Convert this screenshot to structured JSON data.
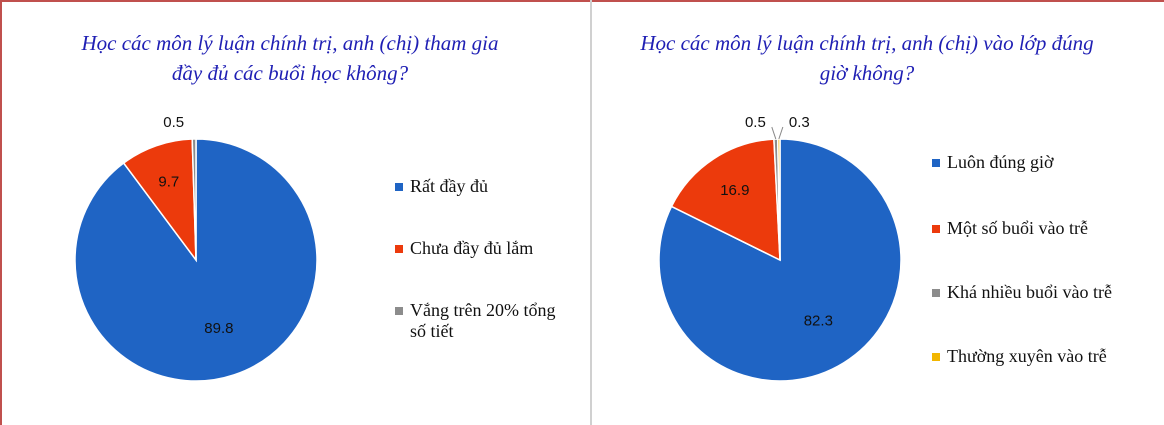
{
  "chart_data": [
    {
      "type": "pie",
      "title": "Học các môn lý luận chính trị, anh (chị) tham gia đầy đủ các buổi học không?",
      "categories": [
        "Rất đầy đủ",
        "Chưa đầy đủ lắm",
        "Vắng trên 20% tổng số tiết"
      ],
      "values": [
        89.8,
        9.7,
        0.5
      ],
      "colors": [
        "#1f64c4",
        "#ec3a0c",
        "#8c8c8c"
      ]
    },
    {
      "type": "pie",
      "title": "Học các môn lý luận chính trị, anh (chị) vào lớp đúng giờ không?",
      "categories": [
        "Luôn đúng giờ",
        "Một số buổi vào trễ",
        "Khá nhiều buổi vào trễ",
        "Thường xuyên vào trễ"
      ],
      "values": [
        82.3,
        16.9,
        0.5,
        0.3
      ],
      "colors": [
        "#1f64c4",
        "#ec3a0c",
        "#8c8c8c",
        "#f2b600"
      ]
    }
  ]
}
